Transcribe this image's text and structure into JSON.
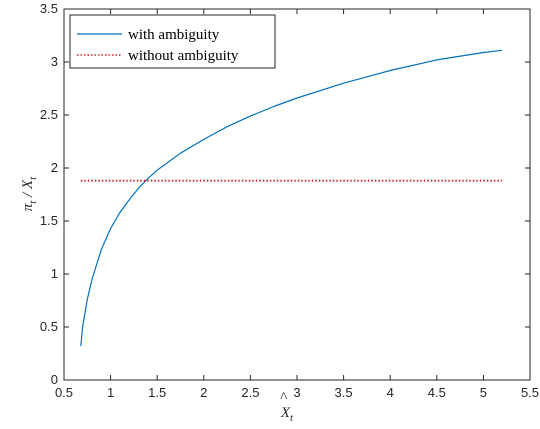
{
  "chart_data": {
    "type": "line",
    "xlabel": "X̂t",
    "ylabel": "π̂t / X̂t",
    "xlim": [
      0.5,
      5.5
    ],
    "ylim": [
      0,
      3.5
    ],
    "xticks": [
      "0.5",
      "1",
      "1.5",
      "2",
      "2.5",
      "3",
      "3.5",
      "4",
      "4.5",
      "5",
      "5.5"
    ],
    "yticks": [
      "0",
      "0.5",
      "1",
      "1.5",
      "2",
      "2.5",
      "3",
      "3.5"
    ],
    "grid": false,
    "legend_position": "top-left",
    "series": [
      {
        "name": "with ambiguity",
        "style": "solid",
        "color": "#0072BD",
        "x": [
          0.68,
          0.7,
          0.75,
          0.8,
          0.9,
          1.0,
          1.1,
          1.2,
          1.3,
          1.4,
          1.5,
          1.75,
          2.0,
          2.25,
          2.5,
          2.75,
          3.0,
          3.5,
          4.0,
          4.5,
          5.0,
          5.2
        ],
        "y": [
          0.32,
          0.5,
          0.76,
          0.95,
          1.23,
          1.43,
          1.58,
          1.7,
          1.81,
          1.9,
          1.98,
          2.14,
          2.27,
          2.39,
          2.49,
          2.58,
          2.66,
          2.8,
          2.92,
          3.02,
          3.09,
          3.11
        ]
      },
      {
        "name": "without ambiguity",
        "style": "dotted",
        "color": "#D62020",
        "x": [
          0.68,
          5.2
        ],
        "y": [
          1.88,
          1.88
        ]
      }
    ]
  }
}
